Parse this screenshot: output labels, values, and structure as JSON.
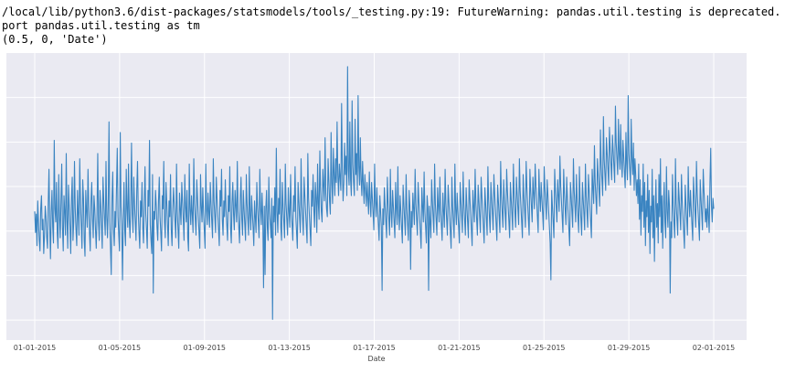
{
  "console": {
    "lines": [
      "/local/lib/python3.6/dist-packages/statsmodels/tools/_testing.py:19: FutureWarning: pandas.util.testing is deprecated. Use t",
      "port pandas.util.testing as tm",
      "(0.5, 0, 'Date')"
    ]
  },
  "colors": {
    "plot_background": "#eaeaf2",
    "grid": "#ffffff",
    "line": "#3a84c1"
  },
  "chart_data": {
    "type": "line",
    "title": "",
    "xlabel": "Date",
    "ylabel": "",
    "x_tick_labels": [
      "01-01-2015",
      "01-05-2015",
      "01-09-2015",
      "01-13-2015",
      "01-17-2015",
      "01-21-2015",
      "01-25-2015",
      "01-29-2015",
      "02-01-2015"
    ],
    "y_tick_labels": [],
    "grid": true,
    "legend": "none",
    "series": [
      {
        "x_start": "01-01-2015",
        "x_end": "02-01-2015",
        "values": [
          0.44,
          0.36,
          0.43,
          0.31,
          0.48,
          0.4,
          0.33,
          0.29,
          0.45,
          0.5,
          0.37,
          0.41,
          0.28,
          0.35,
          0.46,
          0.42,
          0.34,
          0.3,
          0.47,
          0.6,
          0.39,
          0.26,
          0.44,
          0.52,
          0.38,
          0.32,
          0.71,
          0.45,
          0.4,
          0.55,
          0.36,
          0.3,
          0.58,
          0.42,
          0.34,
          0.48,
          0.62,
          0.38,
          0.29,
          0.5,
          0.44,
          0.35,
          0.66,
          0.41,
          0.3,
          0.54,
          0.46,
          0.38,
          0.28,
          0.49,
          0.57,
          0.33,
          0.4,
          0.63,
          0.45,
          0.37,
          0.31,
          0.52,
          0.43,
          0.35,
          0.64,
          0.47,
          0.39,
          0.3,
          0.56,
          0.49,
          0.33,
          0.27,
          0.52,
          0.44,
          0.38,
          0.6,
          0.46,
          0.36,
          0.29,
          0.48,
          0.55,
          0.41,
          0.34,
          0.5,
          0.45,
          0.37,
          0.3,
          0.43,
          0.66,
          0.4,
          0.33,
          0.52,
          0.46,
          0.38,
          0.3,
          0.57,
          0.48,
          0.41,
          0.35,
          0.63,
          0.42,
          0.34,
          0.47,
          0.78,
          0.4,
          0.3,
          0.2,
          0.49,
          0.59,
          0.37,
          0.31,
          0.44,
          0.38,
          0.53,
          0.68,
          0.42,
          0.35,
          0.29,
          0.74,
          0.46,
          0.39,
          0.18,
          0.41,
          0.55,
          0.37,
          0.31,
          0.6,
          0.45,
          0.38,
          0.62,
          0.41,
          0.34,
          0.48,
          0.7,
          0.43,
          0.36,
          0.57,
          0.47,
          0.4,
          0.33,
          0.52,
          0.63,
          0.44,
          0.36,
          0.3,
          0.48,
          0.42,
          0.55,
          0.38,
          0.32,
          0.47,
          0.61,
          0.43,
          0.37,
          0.3,
          0.52,
          0.46,
          0.71,
          0.39,
          0.33,
          0.28,
          0.58,
          0.13,
          0.44,
          0.41,
          0.52,
          0.46,
          0.38,
          0.33,
          0.48,
          0.57,
          0.42,
          0.36,
          0.29,
          0.5,
          0.45,
          0.63,
          0.4,
          0.34,
          0.55,
          0.47,
          0.39,
          0.31,
          0.48,
          0.42,
          0.58,
          0.37,
          0.31,
          0.45,
          0.53,
          0.46,
          0.4,
          0.34,
          0.62,
          0.44,
          0.37,
          0.3,
          0.51,
          0.45,
          0.39,
          0.55,
          0.48,
          0.41,
          0.33,
          0.58,
          0.46,
          0.4,
          0.52,
          0.34,
          0.29,
          0.62,
          0.45,
          0.39,
          0.5,
          0.43,
          0.36,
          0.64,
          0.47,
          0.41,
          0.35,
          0.56,
          0.49,
          0.42,
          0.36,
          0.3,
          0.58,
          0.46,
          0.4,
          0.53,
          0.44,
          0.37,
          0.3,
          0.62,
          0.45,
          0.39,
          0.51,
          0.44,
          0.38,
          0.55,
          0.47,
          0.4,
          0.34,
          0.64,
          0.48,
          0.42,
          0.36,
          0.57,
          0.49,
          0.43,
          0.37,
          0.31,
          0.52,
          0.46,
          0.6,
          0.41,
          0.35,
          0.48,
          0.42,
          0.56,
          0.45,
          0.39,
          0.33,
          0.5,
          0.44,
          0.61,
          0.38,
          0.32,
          0.47,
          0.55,
          0.43,
          0.37,
          0.52,
          0.46,
          0.4,
          0.63,
          0.44,
          0.38,
          0.32,
          0.49,
          0.57,
          0.41,
          0.35,
          0.52,
          0.45,
          0.39,
          0.33,
          0.58,
          0.47,
          0.41,
          0.35,
          0.61,
          0.43,
          0.37,
          0.5,
          0.44,
          0.38,
          0.31,
          0.48,
          0.42,
          0.36,
          0.55,
          0.46,
          0.4,
          0.34,
          0.6,
          0.45,
          0.39,
          0.51,
          0.42,
          0.15,
          0.46,
          0.2,
          0.45,
          0.52,
          0.38,
          0.33,
          0.57,
          0.44,
          0.39,
          0.34,
          0.49,
          0.03,
          0.46,
          0.4,
          0.53,
          0.35,
          0.68,
          0.44,
          0.36,
          0.49,
          0.43,
          0.6,
          0.38,
          0.33,
          0.55,
          0.46,
          0.4,
          0.34,
          0.62,
          0.47,
          0.41,
          0.35,
          0.53,
          0.44,
          0.38,
          0.58,
          0.45,
          0.39,
          0.33,
          0.5,
          0.44,
          0.61,
          0.42,
          0.36,
          0.3,
          0.55,
          0.48,
          0.42,
          0.36,
          0.64,
          0.47,
          0.41,
          0.35,
          0.57,
          0.5,
          0.44,
          0.38,
          0.32,
          0.66,
          0.49,
          0.43,
          0.37,
          0.31,
          0.52,
          0.46,
          0.58,
          0.45,
          0.38,
          0.55,
          0.49,
          0.36,
          0.62,
          0.47,
          0.41,
          0.67,
          0.52,
          0.44,
          0.4,
          0.6,
          0.54,
          0.48,
          0.72,
          0.51,
          0.45,
          0.42,
          0.64,
          0.56,
          0.48,
          0.43,
          0.74,
          0.55,
          0.47,
          0.68,
          0.58,
          0.5,
          0.64,
          0.55,
          0.78,
          0.58,
          0.5,
          0.62,
          0.57,
          0.52,
          0.85,
          0.6,
          0.48,
          0.55,
          0.7,
          0.58,
          0.65,
          0.5,
          0.99,
          0.6,
          0.54,
          0.78,
          0.56,
          0.5,
          0.86,
          0.62,
          0.55,
          0.5,
          0.79,
          0.58,
          0.66,
          0.52,
          0.88,
          0.61,
          0.54,
          0.72,
          0.56,
          0.5,
          0.63,
          0.54,
          0.47,
          0.58,
          0.52,
          0.46,
          0.55,
          0.49,
          0.43,
          0.59,
          0.48,
          0.42,
          0.55,
          0.49,
          0.43,
          0.37,
          0.62,
          0.48,
          0.42,
          0.53,
          0.45,
          0.39,
          0.33,
          0.5,
          0.44,
          0.38,
          0.14,
          0.45,
          0.39,
          0.53,
          0.46,
          0.4,
          0.34,
          0.57,
          0.47,
          0.41,
          0.35,
          0.6,
          0.44,
          0.38,
          0.52,
          0.46,
          0.4,
          0.34,
          0.55,
          0.45,
          0.39,
          0.61,
          0.43,
          0.37,
          0.5,
          0.44,
          0.38,
          0.32,
          0.54,
          0.47,
          0.41,
          0.35,
          0.58,
          0.45,
          0.39,
          0.33,
          0.52,
          0.46,
          0.22,
          0.44,
          0.38,
          0.51,
          0.45,
          0.39,
          0.6,
          0.47,
          0.41,
          0.35,
          0.55,
          0.48,
          0.42,
          0.36,
          0.3,
          0.53,
          0.46,
          0.4,
          0.59,
          0.44,
          0.38,
          0.32,
          0.5,
          0.45,
          0.14,
          0.46,
          0.4,
          0.34,
          0.56,
          0.48,
          0.42,
          0.36,
          0.62,
          0.47,
          0.41,
          0.35,
          0.53,
          0.46,
          0.4,
          0.57,
          0.45,
          0.39,
          0.33,
          0.51,
          0.44,
          0.38,
          0.6,
          0.47,
          0.41,
          0.35,
          0.54,
          0.48,
          0.42,
          0.36,
          0.3,
          0.57,
          0.46,
          0.4,
          0.34,
          0.62,
          0.45,
          0.39,
          0.51,
          0.44,
          0.38,
          0.32,
          0.55,
          0.48,
          0.42,
          0.36,
          0.59,
          0.47,
          0.41,
          0.35,
          0.53,
          0.46,
          0.4,
          0.34,
          0.56,
          0.49,
          0.43,
          0.37,
          0.31,
          0.52,
          0.46,
          0.4,
          0.6,
          0.47,
          0.41,
          0.35,
          0.54,
          0.48,
          0.42,
          0.36,
          0.57,
          0.5,
          0.44,
          0.38,
          0.32,
          0.53,
          0.47,
          0.41,
          0.35,
          0.61,
          0.48,
          0.42,
          0.36,
          0.55,
          0.49,
          0.43,
          0.37,
          0.58,
          0.51,
          0.45,
          0.39,
          0.33,
          0.54,
          0.48,
          0.42,
          0.36,
          0.63,
          0.5,
          0.44,
          0.38,
          0.56,
          0.49,
          0.43,
          0.37,
          0.6,
          0.52,
          0.46,
          0.4,
          0.34,
          0.55,
          0.49,
          0.43,
          0.37,
          0.62,
          0.5,
          0.44,
          0.38,
          0.57,
          0.51,
          0.45,
          0.39,
          0.64,
          0.52,
          0.46,
          0.4,
          0.34,
          0.58,
          0.5,
          0.44,
          0.38,
          0.63,
          0.53,
          0.47,
          0.41,
          0.35,
          0.6,
          0.52,
          0.46,
          0.4,
          0.57,
          0.51,
          0.45,
          0.62,
          0.54,
          0.48,
          0.42,
          0.36,
          0.6,
          0.5,
          0.44,
          0.55,
          0.49,
          0.43,
          0.37,
          0.61,
          0.53,
          0.47,
          0.41,
          0.56,
          0.5,
          0.44,
          0.38,
          0.32,
          0.18,
          0.52,
          0.46,
          0.4,
          0.34,
          0.6,
          0.52,
          0.46,
          0.4,
          0.56,
          0.5,
          0.44,
          0.65,
          0.54,
          0.48,
          0.42,
          0.36,
          0.6,
          0.51,
          0.45,
          0.39,
          0.57,
          0.49,
          0.43,
          0.37,
          0.31,
          0.55,
          0.5,
          0.44,
          0.38,
          0.64,
          0.52,
          0.46,
          0.4,
          0.58,
          0.48,
          0.42,
          0.36,
          0.61,
          0.47,
          0.41,
          0.35,
          0.55,
          0.49,
          0.43,
          0.37,
          0.62,
          0.5,
          0.44,
          0.38,
          0.58,
          0.52,
          0.46,
          0.4,
          0.34,
          0.6,
          0.53,
          0.47,
          0.69,
          0.55,
          0.49,
          0.43,
          0.64,
          0.58,
          0.52,
          0.46,
          0.75,
          0.62,
          0.56,
          0.5,
          0.8,
          0.64,
          0.58,
          0.52,
          0.72,
          0.66,
          0.6,
          0.54,
          0.76,
          0.68,
          0.62,
          0.56,
          0.73,
          0.67,
          0.61,
          0.55,
          0.84,
          0.7,
          0.64,
          0.58,
          0.79,
          0.66,
          0.6,
          0.77,
          0.63,
          0.57,
          0.71,
          0.65,
          0.59,
          0.53,
          0.74,
          0.62,
          0.56,
          0.88,
          0.66,
          0.6,
          0.54,
          0.79,
          0.64,
          0.58,
          0.7,
          0.52,
          0.64,
          0.58,
          0.5,
          0.56,
          0.47,
          0.62,
          0.41,
          0.56,
          0.35,
          0.5,
          0.44,
          0.62,
          0.38,
          0.55,
          0.31,
          0.48,
          0.42,
          0.58,
          0.36,
          0.52,
          0.28,
          0.46,
          0.4,
          0.6,
          0.34,
          0.5,
          0.25,
          0.44,
          0.56,
          0.38,
          0.47,
          0.32,
          0.58,
          0.42,
          0.64,
          0.36,
          0.5,
          0.3,
          0.46,
          0.55,
          0.4,
          0.34,
          0.61,
          0.44,
          0.38,
          0.52,
          0.46,
          0.13,
          0.4,
          0.34,
          0.58,
          0.46,
          0.4,
          0.34,
          0.64,
          0.47,
          0.41,
          0.35,
          0.55,
          0.49,
          0.43,
          0.37,
          0.58,
          0.48,
          0.42,
          0.36,
          0.3,
          0.54,
          0.47,
          0.41,
          0.35,
          0.61,
          0.48,
          0.42,
          0.52,
          0.45,
          0.39,
          0.33,
          0.57,
          0.5,
          0.44,
          0.38,
          0.63,
          0.51,
          0.45,
          0.39,
          0.33,
          0.56,
          0.49,
          0.43,
          0.37,
          0.6,
          0.52,
          0.46,
          0.4,
          0.45,
          0.38,
          0.5,
          0.42,
          0.36,
          0.55,
          0.68,
          0.46,
          0.4,
          0.49,
          0.45
        ]
      }
    ]
  }
}
